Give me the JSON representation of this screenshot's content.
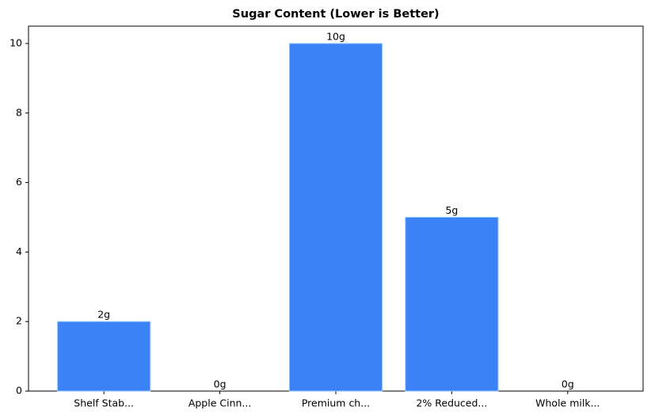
{
  "chart_data": {
    "type": "bar",
    "title": "Sugar Content (Lower is Better)",
    "categories": [
      "Shelf Stab...",
      "Apple Cinn...",
      "Premium ch...",
      "2% Reduced...",
      "Whole milk..."
    ],
    "values": [
      2,
      0,
      10,
      5,
      0
    ],
    "value_labels": [
      "2g",
      "0g",
      "10g",
      "5g",
      "0g"
    ],
    "color": "#3b82f6",
    "ylim": [
      0,
      10.5
    ],
    "yticks": [
      0,
      2,
      4,
      6,
      8,
      10
    ],
    "grid": false
  }
}
